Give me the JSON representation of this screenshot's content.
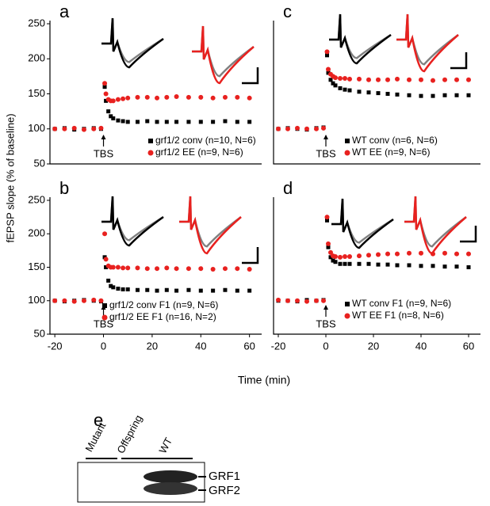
{
  "axis_labels": {
    "y": "fEPSP slope (% of baseline)",
    "x": "Time (min)"
  },
  "chart_data": [
    {
      "type": "scatter",
      "panel": "a",
      "annotation": "TBS",
      "x": [
        -20,
        -16,
        -12,
        -8,
        -4,
        -1,
        0.5,
        1,
        2,
        3,
        4,
        6,
        8,
        10,
        14,
        18,
        22,
        26,
        30,
        35,
        40,
        45,
        50,
        55,
        60
      ],
      "xlim": [
        -22,
        65
      ],
      "ylim": [
        50,
        250
      ],
      "yticks": [
        50,
        100,
        150,
        200,
        250
      ],
      "series": [
        {
          "name": "grf1/2 conv (n=10, N=6)",
          "color": "#000000",
          "marker": "square",
          "values": [
            100,
            101,
            99,
            100,
            101,
            100,
            160,
            140,
            125,
            118,
            115,
            112,
            111,
            110,
            110,
            111,
            110,
            110,
            110,
            110,
            110,
            110,
            111,
            110,
            110
          ]
        },
        {
          "name": "grf1/2 EE (n=9, N=6)",
          "color": "#e8211f",
          "marker": "circle",
          "values": [
            100,
            100,
            101,
            99,
            100,
            101,
            165,
            150,
            142,
            140,
            140,
            142,
            143,
            144,
            145,
            145,
            144,
            145,
            146,
            145,
            145,
            144,
            145,
            145,
            144
          ]
        }
      ]
    },
    {
      "type": "scatter",
      "panel": "b",
      "annotation": "TBS",
      "x": [
        -20,
        -16,
        -12,
        -8,
        -4,
        -1,
        0.5,
        1,
        2,
        3,
        4,
        6,
        8,
        10,
        14,
        18,
        22,
        26,
        30,
        35,
        40,
        45,
        50,
        55,
        60
      ],
      "xlim": [
        -22,
        65
      ],
      "ylim": [
        50,
        250
      ],
      "yticks": [
        50,
        100,
        150,
        200,
        250
      ],
      "xticks": [
        -20,
        0,
        20,
        40,
        60
      ],
      "series": [
        {
          "name": "grf1/2 conv F1 (n=9, N=6)",
          "color": "#000000",
          "marker": "square",
          "values": [
            100,
            99,
            100,
            101,
            100,
            99,
            165,
            150,
            130,
            122,
            120,
            118,
            117,
            117,
            116,
            116,
            115,
            116,
            115,
            116,
            115,
            115,
            116,
            115,
            115
          ]
        },
        {
          "name": "grf1/2 EE F1 (n=16, N=2)",
          "color": "#e8211f",
          "marker": "circle",
          "values": [
            100,
            100,
            99,
            100,
            101,
            100,
            200,
            162,
            152,
            150,
            150,
            150,
            149,
            149,
            149,
            148,
            148,
            149,
            148,
            148,
            148,
            147,
            148,
            148,
            147
          ]
        }
      ]
    },
    {
      "type": "scatter",
      "panel": "c",
      "annotation": "TBS",
      "x": [
        -20,
        -16,
        -12,
        -8,
        -4,
        -1,
        0.5,
        1,
        2,
        3,
        4,
        6,
        8,
        10,
        14,
        18,
        22,
        26,
        30,
        35,
        40,
        45,
        50,
        55,
        60
      ],
      "xlim": [
        -22,
        65
      ],
      "ylim": [
        50,
        250
      ],
      "series": [
        {
          "name": "WT conv (n=6, N=6)",
          "color": "#000000",
          "marker": "square",
          "values": [
            100,
            101,
            100,
            99,
            101,
            102,
            205,
            180,
            170,
            165,
            162,
            158,
            156,
            155,
            153,
            152,
            151,
            150,
            149,
            148,
            147,
            147,
            148,
            148,
            148
          ]
        },
        {
          "name": "WT EE (n=9, N=6)",
          "color": "#e8211f",
          "marker": "circle",
          "values": [
            100,
            100,
            101,
            100,
            100,
            101,
            210,
            185,
            178,
            175,
            173,
            172,
            172,
            171,
            171,
            170,
            170,
            170,
            171,
            170,
            170,
            169,
            170,
            170,
            170
          ]
        }
      ]
    },
    {
      "type": "scatter",
      "panel": "d",
      "annotation": "TBS",
      "x": [
        -20,
        -16,
        -12,
        -8,
        -4,
        -1,
        0.5,
        1,
        2,
        3,
        4,
        6,
        8,
        10,
        14,
        18,
        22,
        26,
        30,
        35,
        40,
        45,
        50,
        55,
        60
      ],
      "xlim": [
        -22,
        65
      ],
      "ylim": [
        50,
        250
      ],
      "xticks": [
        -20,
        0,
        20,
        40,
        60
      ],
      "series": [
        {
          "name": "WT conv F1 (n=9, N=6)",
          "color": "#000000",
          "marker": "square",
          "values": [
            100,
            100,
            99,
            101,
            100,
            101,
            220,
            180,
            165,
            160,
            158,
            155,
            155,
            155,
            155,
            155,
            154,
            154,
            153,
            153,
            152,
            152,
            151,
            151,
            150
          ]
        },
        {
          "name": "WT EE F1 (n=8, N=6)",
          "color": "#e8211f",
          "marker": "circle",
          "values": [
            101,
            100,
            100,
            99,
            100,
            100,
            225,
            185,
            172,
            167,
            166,
            165,
            166,
            166,
            167,
            168,
            169,
            170,
            170,
            171,
            171,
            170,
            171,
            170,
            170
          ]
        }
      ]
    }
  ],
  "blot": {
    "panel": "e",
    "lanes": [
      "Mutant",
      "Offspring",
      "WT"
    ],
    "bands": [
      "GRF1",
      "GRF2"
    ]
  }
}
